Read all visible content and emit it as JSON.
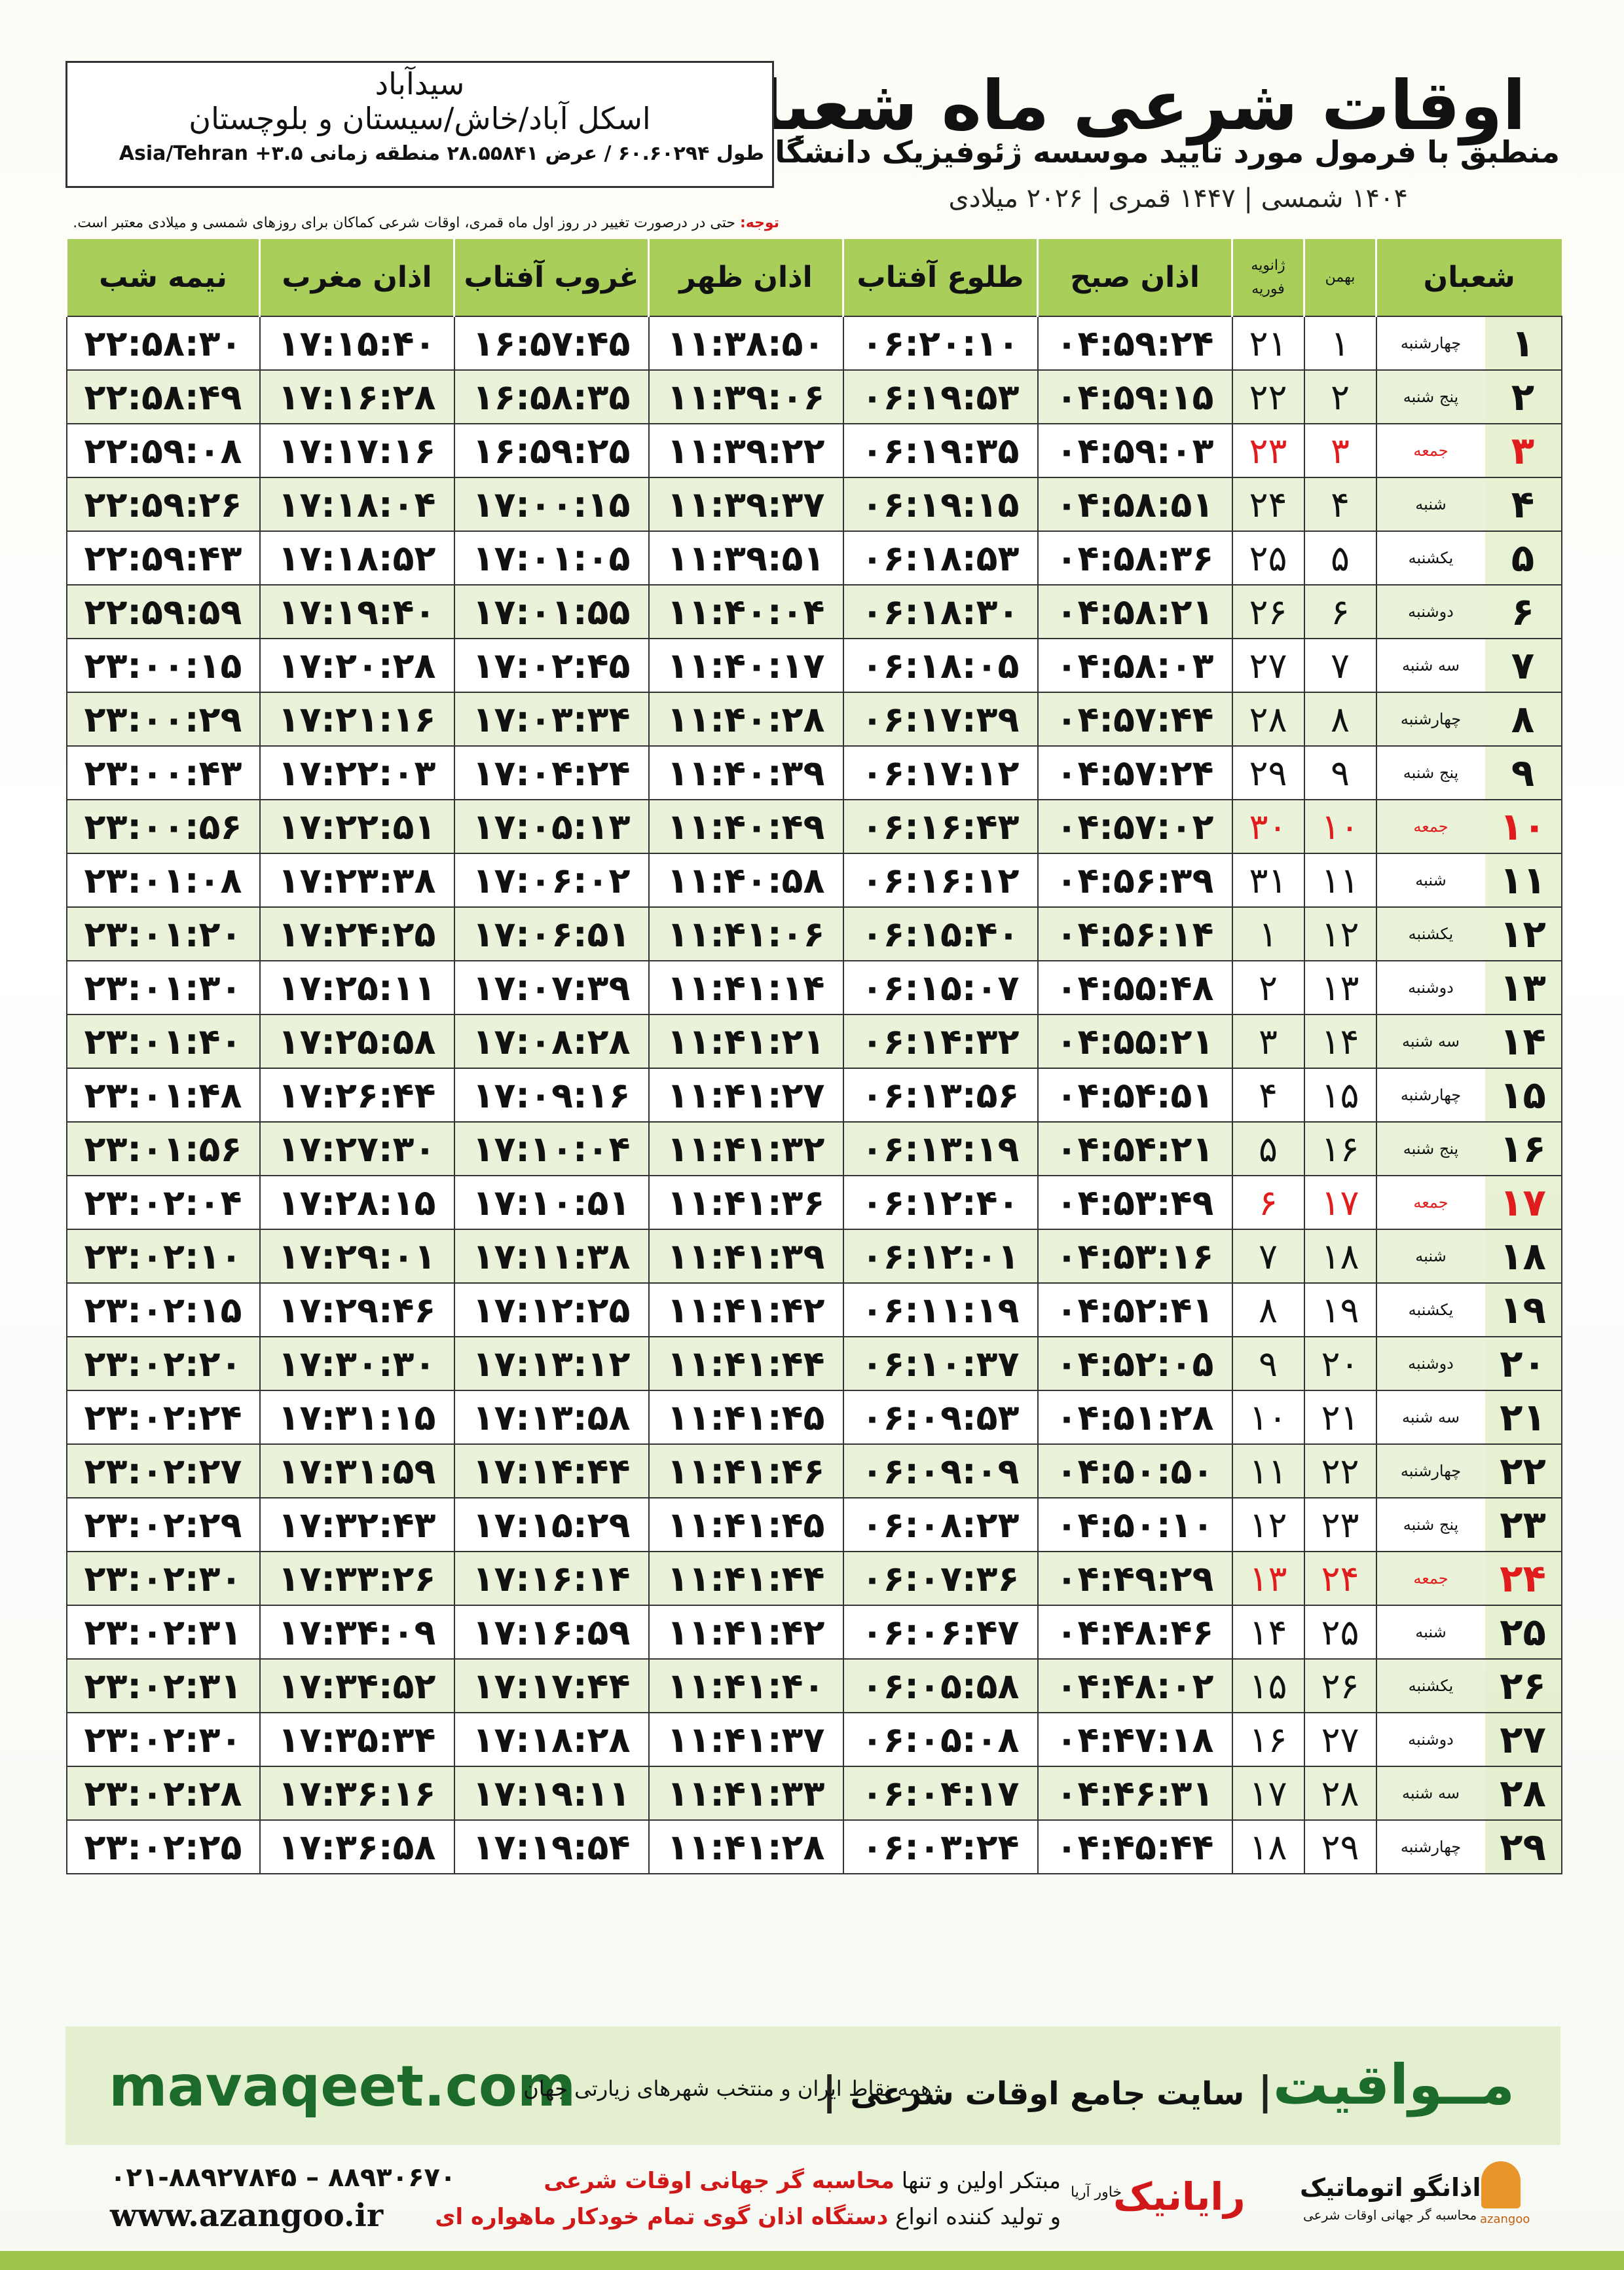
{
  "header": {
    "title": "اوقات شرعی ماه شعبان",
    "subtitle": "منطبق با فرمول مورد تایید موسسه ژئوفیزیک دانشگاه تهران",
    "dates": "۱۴۰۴ شمسی | ۱۴۴۷ قمری | ۲۰۲۶ میلادی"
  },
  "location": {
    "city": "سیدآباد",
    "region": "اسکل آباد/خاش/سیستان و بلوچستان",
    "coords": "طول ۶۰.۶۰۲۹۴ / عرض ۲۸.۵۵۸۴۱ منطقه زمانی ۳.۵+ Asia/Tehran"
  },
  "note": {
    "label": "توجه:",
    "text": "حتی در درصورت تغییر در روز اول ماه قمری، اوقات شرعی کماکان برای روزهای شمسی و میلادی معتبر است."
  },
  "table": {
    "header": {
      "month": "شعبان",
      "bahman": "بهمن",
      "january": "ژانویه",
      "february": "فوریه",
      "times": [
        "اذان صبح",
        "طلوع آفتاب",
        "اذان ظهر",
        "غروب آفتاب",
        "اذان مغرب",
        "نیمه شب"
      ]
    },
    "rows": [
      [
        "۱",
        "چهارشنبه",
        "۱",
        "۲۱",
        "۰۴:۵۹:۲۴",
        "۰۶:۲۰:۱۰",
        "۱۱:۳۸:۵۰",
        "۱۶:۵۷:۴۵",
        "۱۷:۱۵:۴۰",
        "۲۲:۵۸:۳۰"
      ],
      [
        "۲",
        "پنج شنبه",
        "۲",
        "۲۲",
        "۰۴:۵۹:۱۵",
        "۰۶:۱۹:۵۳",
        "۱۱:۳۹:۰۶",
        "۱۶:۵۸:۳۵",
        "۱۷:۱۶:۲۸",
        "۲۲:۵۸:۴۹"
      ],
      [
        "۳",
        "جمعه",
        "۳",
        "۲۳",
        "۰۴:۵۹:۰۳",
        "۰۶:۱۹:۳۵",
        "۱۱:۳۹:۲۲",
        "۱۶:۵۹:۲۵",
        "۱۷:۱۷:۱۶",
        "۲۲:۵۹:۰۸"
      ],
      [
        "۴",
        "شنبه",
        "۴",
        "۲۴",
        "۰۴:۵۸:۵۱",
        "۰۶:۱۹:۱۵",
        "۱۱:۳۹:۳۷",
        "۱۷:۰۰:۱۵",
        "۱۷:۱۸:۰۴",
        "۲۲:۵۹:۲۶"
      ],
      [
        "۵",
        "یکشنبه",
        "۵",
        "۲۵",
        "۰۴:۵۸:۳۶",
        "۰۶:۱۸:۵۳",
        "۱۱:۳۹:۵۱",
        "۱۷:۰۱:۰۵",
        "۱۷:۱۸:۵۲",
        "۲۲:۵۹:۴۳"
      ],
      [
        "۶",
        "دوشنبه",
        "۶",
        "۲۶",
        "۰۴:۵۸:۲۱",
        "۰۶:۱۸:۳۰",
        "۱۱:۴۰:۰۴",
        "۱۷:۰۱:۵۵",
        "۱۷:۱۹:۴۰",
        "۲۲:۵۹:۵۹"
      ],
      [
        "۷",
        "سه شنبه",
        "۷",
        "۲۷",
        "۰۴:۵۸:۰۳",
        "۰۶:۱۸:۰۵",
        "۱۱:۴۰:۱۷",
        "۱۷:۰۲:۴۵",
        "۱۷:۲۰:۲۸",
        "۲۳:۰۰:۱۵"
      ],
      [
        "۸",
        "چهارشنبه",
        "۸",
        "۲۸",
        "۰۴:۵۷:۴۴",
        "۰۶:۱۷:۳۹",
        "۱۱:۴۰:۲۸",
        "۱۷:۰۳:۳۴",
        "۱۷:۲۱:۱۶",
        "۲۳:۰۰:۲۹"
      ],
      [
        "۹",
        "پنج شنبه",
        "۹",
        "۲۹",
        "۰۴:۵۷:۲۴",
        "۰۶:۱۷:۱۲",
        "۱۱:۴۰:۳۹",
        "۱۷:۰۴:۲۴",
        "۱۷:۲۲:۰۳",
        "۲۳:۰۰:۴۳"
      ],
      [
        "۱۰",
        "جمعه",
        "۱۰",
        "۳۰",
        "۰۴:۵۷:۰۲",
        "۰۶:۱۶:۴۳",
        "۱۱:۴۰:۴۹",
        "۱۷:۰۵:۱۳",
        "۱۷:۲۲:۵۱",
        "۲۳:۰۰:۵۶"
      ],
      [
        "۱۱",
        "شنبه",
        "۱۱",
        "۳۱",
        "۰۴:۵۶:۳۹",
        "۰۶:۱۶:۱۲",
        "۱۱:۴۰:۵۸",
        "۱۷:۰۶:۰۲",
        "۱۷:۲۳:۳۸",
        "۲۳:۰۱:۰۸"
      ],
      [
        "۱۲",
        "یکشنبه",
        "۱۲",
        "۱",
        "۰۴:۵۶:۱۴",
        "۰۶:۱۵:۴۰",
        "۱۱:۴۱:۰۶",
        "۱۷:۰۶:۵۱",
        "۱۷:۲۴:۲۵",
        "۲۳:۰۱:۲۰"
      ],
      [
        "۱۳",
        "دوشنبه",
        "۱۳",
        "۲",
        "۰۴:۵۵:۴۸",
        "۰۶:۱۵:۰۷",
        "۱۱:۴۱:۱۴",
        "۱۷:۰۷:۳۹",
        "۱۷:۲۵:۱۱",
        "۲۳:۰۱:۳۰"
      ],
      [
        "۱۴",
        "سه شنبه",
        "۱۴",
        "۳",
        "۰۴:۵۵:۲۱",
        "۰۶:۱۴:۳۲",
        "۱۱:۴۱:۲۱",
        "۱۷:۰۸:۲۸",
        "۱۷:۲۵:۵۸",
        "۲۳:۰۱:۴۰"
      ],
      [
        "۱۵",
        "چهارشنبه",
        "۱۵",
        "۴",
        "۰۴:۵۴:۵۱",
        "۰۶:۱۳:۵۶",
        "۱۱:۴۱:۲۷",
        "۱۷:۰۹:۱۶",
        "۱۷:۲۶:۴۴",
        "۲۳:۰۱:۴۸"
      ],
      [
        "۱۶",
        "پنج شنبه",
        "۱۶",
        "۵",
        "۰۴:۵۴:۲۱",
        "۰۶:۱۳:۱۹",
        "۱۱:۴۱:۳۲",
        "۱۷:۱۰:۰۴",
        "۱۷:۲۷:۳۰",
        "۲۳:۰۱:۵۶"
      ],
      [
        "۱۷",
        "جمعه",
        "۱۷",
        "۶",
        "۰۴:۵۳:۴۹",
        "۰۶:۱۲:۴۰",
        "۱۱:۴۱:۳۶",
        "۱۷:۱۰:۵۱",
        "۱۷:۲۸:۱۵",
        "۲۳:۰۲:۰۴"
      ],
      [
        "۱۸",
        "شنبه",
        "۱۸",
        "۷",
        "۰۴:۵۳:۱۶",
        "۰۶:۱۲:۰۱",
        "۱۱:۴۱:۳۹",
        "۱۷:۱۱:۳۸",
        "۱۷:۲۹:۰۱",
        "۲۳:۰۲:۱۰"
      ],
      [
        "۱۹",
        "یکشنبه",
        "۱۹",
        "۸",
        "۰۴:۵۲:۴۱",
        "۰۶:۱۱:۱۹",
        "۱۱:۴۱:۴۲",
        "۱۷:۱۲:۲۵",
        "۱۷:۲۹:۴۶",
        "۲۳:۰۲:۱۵"
      ],
      [
        "۲۰",
        "دوشنبه",
        "۲۰",
        "۹",
        "۰۴:۵۲:۰۵",
        "۰۶:۱۰:۳۷",
        "۱۱:۴۱:۴۴",
        "۱۷:۱۳:۱۲",
        "۱۷:۳۰:۳۰",
        "۲۳:۰۲:۲۰"
      ],
      [
        "۲۱",
        "سه شنبه",
        "۲۱",
        "۱۰",
        "۰۴:۵۱:۲۸",
        "۰۶:۰۹:۵۳",
        "۱۱:۴۱:۴۵",
        "۱۷:۱۳:۵۸",
        "۱۷:۳۱:۱۵",
        "۲۳:۰۲:۲۴"
      ],
      [
        "۲۲",
        "چهارشنبه",
        "۲۲",
        "۱۱",
        "۰۴:۵۰:۵۰",
        "۰۶:۰۹:۰۹",
        "۱۱:۴۱:۴۶",
        "۱۷:۱۴:۴۴",
        "۱۷:۳۱:۵۹",
        "۲۳:۰۲:۲۷"
      ],
      [
        "۲۳",
        "پنج شنبه",
        "۲۳",
        "۱۲",
        "۰۴:۵۰:۱۰",
        "۰۶:۰۸:۲۳",
        "۱۱:۴۱:۴۵",
        "۱۷:۱۵:۲۹",
        "۱۷:۳۲:۴۳",
        "۲۳:۰۲:۲۹"
      ],
      [
        "۲۴",
        "جمعه",
        "۲۴",
        "۱۳",
        "۰۴:۴۹:۲۹",
        "۰۶:۰۷:۳۶",
        "۱۱:۴۱:۴۴",
        "۱۷:۱۶:۱۴",
        "۱۷:۳۳:۲۶",
        "۲۳:۰۲:۳۰"
      ],
      [
        "۲۵",
        "شنبه",
        "۲۵",
        "۱۴",
        "۰۴:۴۸:۴۶",
        "۰۶:۰۶:۴۷",
        "۱۱:۴۱:۴۲",
        "۱۷:۱۶:۵۹",
        "۱۷:۳۴:۰۹",
        "۲۳:۰۲:۳۱"
      ],
      [
        "۲۶",
        "یکشنبه",
        "۲۶",
        "۱۵",
        "۰۴:۴۸:۰۲",
        "۰۶:۰۵:۵۸",
        "۱۱:۴۱:۴۰",
        "۱۷:۱۷:۴۴",
        "۱۷:۳۴:۵۲",
        "۲۳:۰۲:۳۱"
      ],
      [
        "۲۷",
        "دوشنبه",
        "۲۷",
        "۱۶",
        "۰۴:۴۷:۱۸",
        "۰۶:۰۵:۰۸",
        "۱۱:۴۱:۳۷",
        "۱۷:۱۸:۲۸",
        "۱۷:۳۵:۳۴",
        "۲۳:۰۲:۳۰"
      ],
      [
        "۲۸",
        "سه شنبه",
        "۲۸",
        "۱۷",
        "۰۴:۴۶:۳۱",
        "۰۶:۰۴:۱۷",
        "۱۱:۴۱:۳۳",
        "۱۷:۱۹:۱۱",
        "۱۷:۳۶:۱۶",
        "۲۳:۰۲:۲۸"
      ],
      [
        "۲۹",
        "چهارشنبه",
        "۲۹",
        "۱۸",
        "۰۴:۴۵:۴۴",
        "۰۶:۰۳:۲۴",
        "۱۱:۴۱:۲۸",
        "۱۷:۱۹:۵۴",
        "۱۷:۳۶:۵۸",
        "۲۳:۰۲:۲۵"
      ]
    ]
  },
  "banner": {
    "brand": "مــواقیت",
    "tagline": "سایت جامع اوقات شرعی",
    "scope": "همه نقاط ایران و منتخب شهرهای زیارتی جهان",
    "site": "mavaqeet.com"
  },
  "footer": {
    "line1_a": "مبتکر اولین و تنها",
    "line1_b": "محاسبه گر جهانی اوقات شرعی",
    "line2_a": "و تولید کننده انواع",
    "line2_b": "دستگاه اذان گوی تمام خودکار ماهواره ای",
    "phones": "۰۲۱-۸۸۹۲۷۸۴۵ – ۸۸۹۳۰۶۷۰",
    "web": "www.azangoo.ir",
    "logo1": "رایانیک",
    "logo1_sub": "خاور آریا",
    "logo2": "اذانگو اتوماتیک",
    "logo2_sub": "محاسبه گر جهانی اوقات شرعی",
    "logo2_mark": "azangoo"
  }
}
